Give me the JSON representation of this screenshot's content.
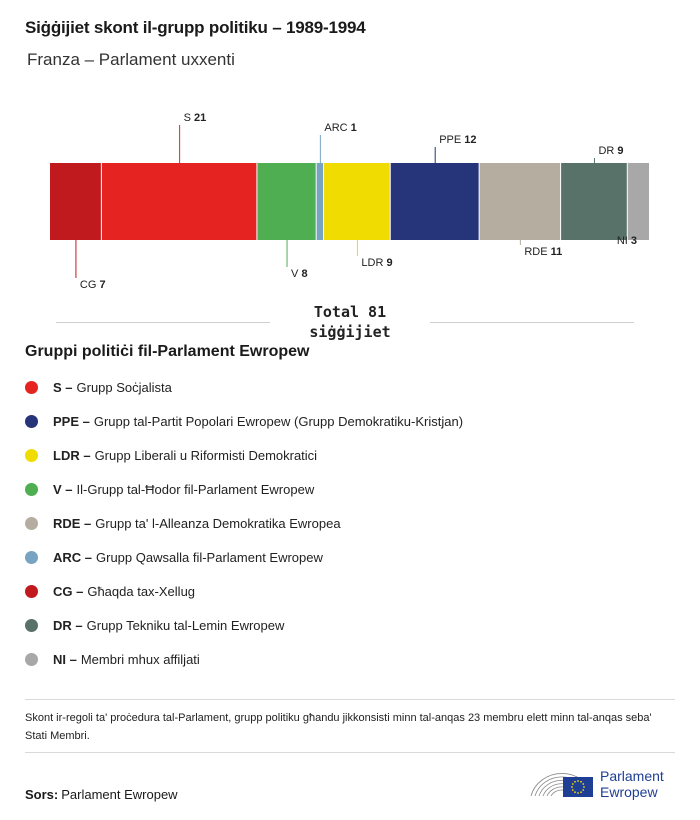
{
  "title": "Siġġijiet skont il-grupp politiku – 1989-1994",
  "subtitle": "Franza – Parlament uxxenti",
  "chart_data": {
    "type": "bar",
    "subtype": "stacked-horizontal-seat-share",
    "categories": [
      "CG",
      "S",
      "V",
      "ARC",
      "LDR",
      "PPE",
      "RDE",
      "DR",
      "NI"
    ],
    "values": [
      7,
      21,
      8,
      1,
      9,
      12,
      11,
      9,
      3
    ],
    "colors": [
      "#c0191e",
      "#e52421",
      "#4fae52",
      "#78a4c4",
      "#f0dc00",
      "#263479",
      "#b5ada0",
      "#587169",
      "#a8a8a8"
    ],
    "label_side": [
      "bottom",
      "top",
      "bottom",
      "top",
      "bottom",
      "top",
      "bottom",
      "top",
      "bottom"
    ],
    "total": 81,
    "total_label": "Total 81\nsiġġijiet"
  },
  "legend": {
    "heading": "Gruppi politiċi fil-Parlament Ewropew",
    "items": [
      {
        "abbr": "S –",
        "name": "Grupp Soċjalista",
        "color": "#e52421"
      },
      {
        "abbr": "PPE –",
        "name": "Grupp tal-Partit Popolari Ewropew (Grupp Demokratiku-Kristjan)",
        "color": "#263479"
      },
      {
        "abbr": "LDR –",
        "name": "Grupp Liberali u Riformisti Demokratici",
        "color": "#f0dc00"
      },
      {
        "abbr": "V –",
        "name": "Il-Grupp tal-Ħodor fil-Parlament Ewropew",
        "color": "#4fae52"
      },
      {
        "abbr": "RDE –",
        "name": "Grupp ta' l-Alleanza Demokratika Ewropea",
        "color": "#b5ada0"
      },
      {
        "abbr": "ARC –",
        "name": "Grupp Qawsalla fil-Parlament Ewropew",
        "color": "#78a4c4"
      },
      {
        "abbr": "CG –",
        "name": "Għaqda tax-Xellug",
        "color": "#c0191e"
      },
      {
        "abbr": "DR –",
        "name": "Grupp Tekniku tal-Lemin Ewropew",
        "color": "#587169"
      },
      {
        "abbr": "NI –",
        "name": "Membri mhux affiljati",
        "color": "#a8a8a8"
      }
    ]
  },
  "note": "Skont ir-regoli ta' proċedura tal-Parlament, grupp politiku għandu jikkonsisti minn tal-anqas 23 membru elett minn tal-anqas seba' Stati Membri.",
  "source": {
    "label": "Sors:",
    "value": "Parlament Ewropew"
  },
  "logo": {
    "line1": "Parlament",
    "line2": "Ewropew"
  }
}
